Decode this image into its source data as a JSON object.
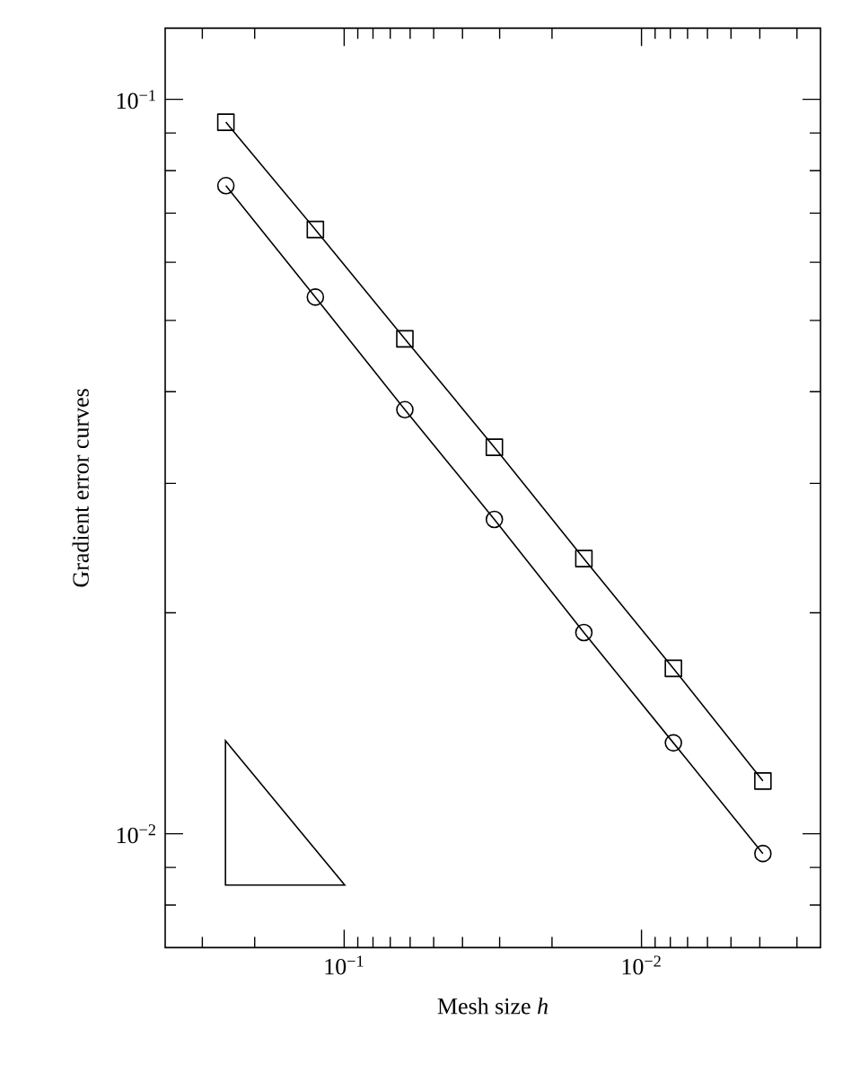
{
  "chart_data": {
    "type": "line",
    "xlabel": "Mesh size *h*",
    "ylabel": "Gradient error curves",
    "x": [
      0.25,
      0.125,
      0.0625,
      0.03125,
      0.015625,
      0.0078125,
      0.00390625
    ],
    "series": [
      {
        "color": "#000000",
        "marker": "square",
        "values": [
          0.0931,
          0.0665,
          0.0472,
          0.0336,
          0.0237,
          0.0168,
          0.0118
        ]
      },
      {
        "color": "#000000",
        "marker": "circle",
        "values": [
          0.0763,
          0.0538,
          0.0378,
          0.0268,
          0.0188,
          0.0133,
          0.0094
        ]
      }
    ],
    "log": "xy",
    "xlim": [
      0.4,
      0.0025
    ],
    "ylim": [
      0.007,
      0.125
    ],
    "xticks": [
      {
        "value": 0.3,
        "label": null
      },
      {
        "value": 0.2,
        "label": null
      },
      {
        "value": 0.1,
        "label": "10$^{−1}$"
      },
      {
        "value": 0.09,
        "label": null
      },
      {
        "value": 0.08,
        "label": null
      },
      {
        "value": 0.07,
        "label": null
      },
      {
        "value": 0.06,
        "label": null
      },
      {
        "value": 0.05,
        "label": null
      },
      {
        "value": 0.04,
        "label": null
      },
      {
        "value": 0.03,
        "label": null
      },
      {
        "value": 0.02,
        "label": null
      },
      {
        "value": 0.01,
        "label": "10$^{−2}$"
      },
      {
        "value": 0.009,
        "label": null
      },
      {
        "value": 0.008,
        "label": null
      },
      {
        "value": 0.007,
        "label": null
      },
      {
        "value": 0.006,
        "label": null
      },
      {
        "value": 0.005,
        "label": null
      },
      {
        "value": 0.004,
        "label": null
      },
      {
        "value": 0.003,
        "label": null
      }
    ],
    "yticks": [
      {
        "value": 0.1,
        "label": "10$^{−1}$"
      },
      {
        "value": 0.09,
        "label": null
      },
      {
        "value": 0.08,
        "label": null
      },
      {
        "value": 0.07,
        "label": null
      },
      {
        "value": 0.06,
        "label": null
      },
      {
        "value": 0.05,
        "label": null
      },
      {
        "value": 0.04,
        "label": null
      },
      {
        "value": 0.03,
        "label": null
      },
      {
        "value": 0.02,
        "label": null
      },
      {
        "value": 0.01,
        "label": "10$^{−2}$"
      },
      {
        "value": 0.009,
        "label": null
      },
      {
        "value": 0.008,
        "label": null
      }
    ],
    "grid": false,
    "line_style": "solid"
  }
}
